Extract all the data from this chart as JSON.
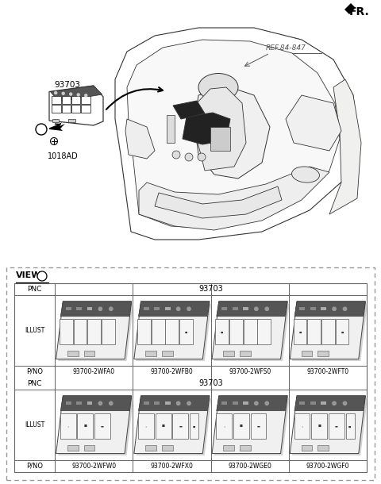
{
  "bg_color": "#ffffff",
  "fr_label": "FR.",
  "ref_label": "REF.84-847",
  "label_1018AD": "1018AD",
  "label_93703": "93703",
  "row1_pnc": "93703",
  "row2_pnc": "93703",
  "row1_pno": [
    "93700-2WFA0",
    "93700-2WFB0",
    "93700-2WFS0",
    "93700-2WFT0"
  ],
  "row2_pno": [
    "93700-2WFW0",
    "93700-2WFX0",
    "93700-2WGE0",
    "93700-2WGF0"
  ],
  "dashed_border": "#999999",
  "line_color": "#333333",
  "table_line": "#666666"
}
